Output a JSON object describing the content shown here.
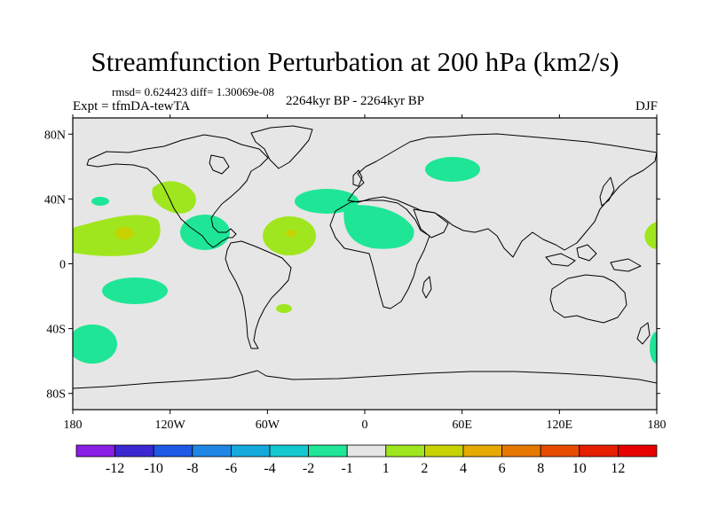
{
  "title": "Streamfunction Perturbation at 200 hPa (km2/s)",
  "stats": "rmsd= 0.624423 diff= 1.30069e-08",
  "experiment": "Expt = tfmDA-tewTA",
  "period": "2264kyr BP - 2264kyr BP",
  "season": "DJF",
  "map": {
    "lat_ticks": [
      "80N",
      "40N",
      "0",
      "40S",
      "80S"
    ],
    "lon_ticks": [
      "180",
      "120W",
      "60W",
      "0",
      "60E",
      "120E",
      "180"
    ],
    "background_color": "#e6e6e6",
    "coast_color": "#000000"
  },
  "colorbar": {
    "labels": [
      "-12",
      "-10",
      "-8",
      "-6",
      "-4",
      "-2",
      "-1",
      "1",
      "2",
      "4",
      "6",
      "8",
      "10",
      "12"
    ],
    "colors": [
      "#8a1ee6",
      "#3c28d2",
      "#1e5ae6",
      "#1e87e6",
      "#14aadc",
      "#14c8d2",
      "#1ee696",
      "#e6e6e6",
      "#a0e61e",
      "#c8d200",
      "#e6aa00",
      "#e67800",
      "#e64b00",
      "#e61e00",
      "#e60000"
    ]
  }
}
